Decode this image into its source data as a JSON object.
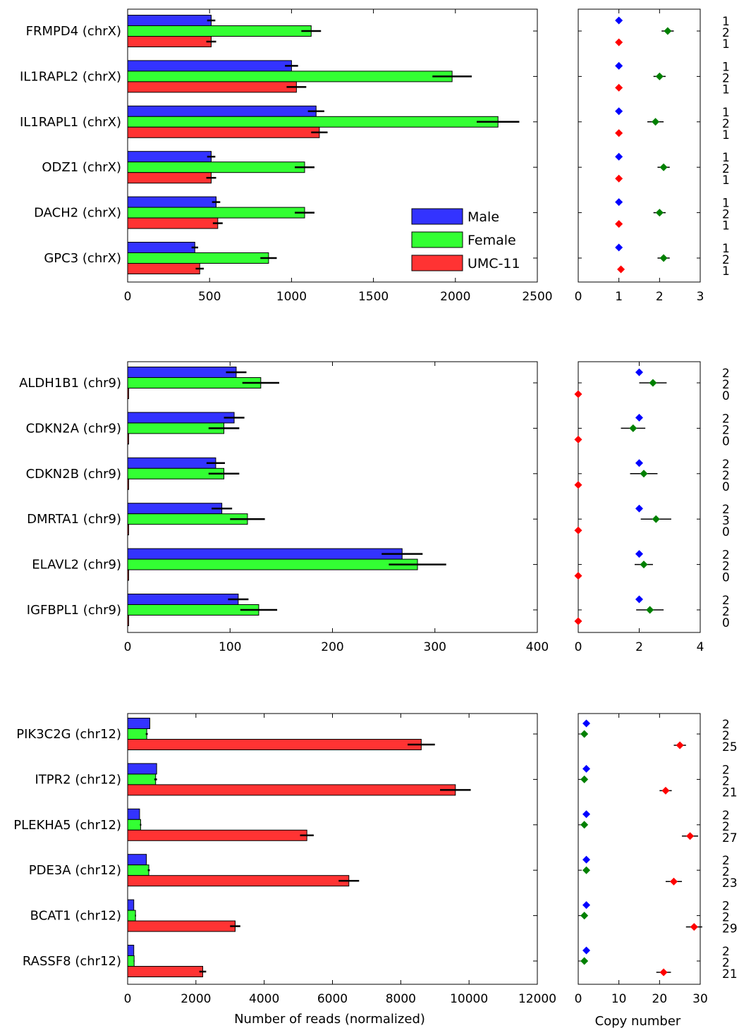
{
  "chart_data": {
    "type": "bar",
    "orientation": "horizontal",
    "legend": {
      "placement": "inside, lower-right of first bar panel",
      "entries": [
        {
          "name": "Male",
          "color": "#3333ff"
        },
        {
          "name": "Female",
          "color": "#33ff33"
        },
        {
          "name": "UMC-11",
          "color": "#ff3333"
        }
      ]
    },
    "marker_colors": {
      "male": "#0000ff",
      "female": "#008000",
      "umc": "#ff0000"
    },
    "xlabel_bar": "Number of reads (normalized)",
    "xlabel_cn": "Copy number",
    "panels": [
      {
        "genes": [
          "FRMPD4 (chrX)",
          "IL1RAPL2 (chrX)",
          "IL1RAPL1 (chrX)",
          "ODZ1 (chrX)",
          "DACH2 (chrX)",
          "GPC3 (chrX)"
        ],
        "bar_xlim": [
          0,
          2500
        ],
        "bar_xticks": [
          "0",
          "500",
          "1000",
          "1500",
          "2000",
          "2500"
        ],
        "male": [
          510,
          1000,
          1150,
          510,
          540,
          410
        ],
        "male_err": [
          25,
          40,
          50,
          25,
          25,
          20
        ],
        "female": [
          1120,
          1980,
          2260,
          1080,
          1080,
          860
        ],
        "female_err": [
          60,
          120,
          130,
          60,
          60,
          50
        ],
        "umc": [
          510,
          1030,
          1170,
          510,
          550,
          440
        ],
        "umc_err": [
          30,
          60,
          50,
          30,
          30,
          25
        ],
        "cn_xlim": [
          0,
          3
        ],
        "cn_xticks": [
          "0",
          "1",
          "2",
          "3"
        ],
        "cn_male": [
          1.0,
          1.0,
          1.0,
          1.0,
          1.0,
          1.0
        ],
        "cn_female": [
          2.2,
          2.0,
          1.9,
          2.1,
          2.0,
          2.1
        ],
        "cn_female_err": [
          0.15,
          0.15,
          0.2,
          0.15,
          0.15,
          0.15
        ],
        "cn_umc": [
          1.0,
          1.0,
          1.0,
          1.0,
          1.0,
          1.05
        ],
        "cn_umc_err": [
          0.08,
          0.08,
          0.08,
          0.08,
          0.08,
          0.08
        ],
        "cn_labels": [
          [
            "1",
            "2",
            "1"
          ],
          [
            "1",
            "2",
            "1"
          ],
          [
            "1",
            "2",
            "1"
          ],
          [
            "1",
            "2",
            "1"
          ],
          [
            "1",
            "2",
            "1"
          ],
          [
            "1",
            "2",
            "1"
          ]
        ]
      },
      {
        "genes": [
          "ALDH1B1 (chr9)",
          "CDKN2A (chr9)",
          "CDKN2B (chr9)",
          "DMRTA1 (chr9)",
          "ELAVL2 (chr9)",
          "IGFBPL1 (chr9)"
        ],
        "bar_xlim": [
          0,
          400
        ],
        "bar_xticks": [
          "0",
          "100",
          "200",
          "300",
          "400"
        ],
        "male": [
          106,
          104,
          86,
          92,
          268,
          108
        ],
        "male_err": [
          10,
          10,
          9,
          10,
          20,
          10
        ],
        "female": [
          130,
          94,
          94,
          117,
          283,
          128
        ],
        "female_err": [
          18,
          15,
          15,
          17,
          28,
          18
        ],
        "umc": [
          1,
          1,
          1,
          1,
          1,
          1
        ],
        "umc_err": [
          0,
          0,
          0,
          0,
          0,
          0
        ],
        "cn_xlim": [
          0,
          4
        ],
        "cn_xticks": [
          "0",
          "2",
          "4"
        ],
        "cn_male": [
          2.0,
          2.0,
          2.0,
          2.0,
          2.0,
          2.0
        ],
        "cn_female": [
          2.45,
          1.8,
          2.15,
          2.55,
          2.15,
          2.35
        ],
        "cn_female_err": [
          0.45,
          0.4,
          0.45,
          0.5,
          0.3,
          0.45
        ],
        "cn_umc": [
          0,
          0,
          0,
          0,
          0,
          0
        ],
        "cn_umc_err": [
          0,
          0,
          0,
          0,
          0,
          0
        ],
        "cn_labels": [
          [
            "2",
            "2",
            "0"
          ],
          [
            "2",
            "2",
            "0"
          ],
          [
            "2",
            "2",
            "0"
          ],
          [
            "2",
            "3",
            "0"
          ],
          [
            "2",
            "2",
            "0"
          ],
          [
            "2",
            "2",
            "0"
          ]
        ]
      },
      {
        "genes": [
          "PIK3C2G (chr12)",
          "ITPR2 (chr12)",
          "PLEKHA5 (chr12)",
          "PDE3A (chr12)",
          "BCAT1 (chr12)",
          "RASSF8 (chr12)"
        ],
        "bar_xlim": [
          0,
          12000
        ],
        "bar_xticks": [
          "0",
          "2000",
          "4000",
          "6000",
          "8000",
          "10000",
          "12000"
        ],
        "male": [
          650,
          850,
          350,
          550,
          180,
          180
        ],
        "male_err": [
          0,
          0,
          0,
          0,
          0,
          0
        ],
        "female": [
          560,
          820,
          380,
          620,
          230,
          190
        ],
        "female_err": [
          30,
          40,
          20,
          30,
          15,
          10
        ],
        "umc": [
          8600,
          9600,
          5250,
          6480,
          3150,
          2200
        ],
        "umc_err": [
          400,
          450,
          200,
          300,
          150,
          100
        ],
        "cn_xlim": [
          0,
          30
        ],
        "cn_xticks": [
          "0",
          "10",
          "20",
          "30"
        ],
        "cn_male": [
          2,
          2,
          2,
          2,
          2,
          2
        ],
        "cn_female": [
          1.5,
          1.5,
          1.5,
          2,
          1.5,
          1.5
        ],
        "cn_female_err": [
          0.3,
          0.3,
          0.3,
          0.3,
          0.3,
          0.3
        ],
        "cn_umc": [
          25,
          21.5,
          27.5,
          23.5,
          28.5,
          21
        ],
        "cn_umc_err": [
          1.5,
          1.5,
          2.0,
          2.0,
          2.0,
          1.8
        ],
        "cn_labels": [
          [
            "2",
            "2",
            "25"
          ],
          [
            "2",
            "2",
            "21"
          ],
          [
            "2",
            "2",
            "27"
          ],
          [
            "2",
            "2",
            "23"
          ],
          [
            "2",
            "2",
            "29"
          ],
          [
            "2",
            "2",
            "21"
          ]
        ]
      }
    ]
  }
}
